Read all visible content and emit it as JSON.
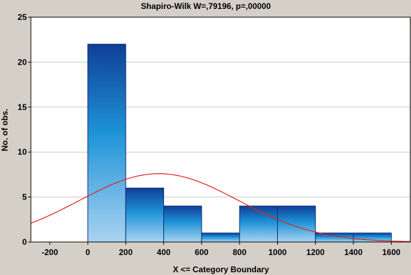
{
  "chart_data": {
    "type": "bar",
    "title": "Shapiro-Wilk W=,79196, p=,00000",
    "xlabel": "X <= Category Boundary",
    "ylabel": "No. of obs.",
    "xlim": [
      -300,
      1700
    ],
    "ylim": [
      0,
      25
    ],
    "x_ticks": [
      -200,
      0,
      200,
      400,
      600,
      800,
      1000,
      1200,
      1400,
      1600
    ],
    "y_ticks": [
      0,
      5,
      10,
      15,
      20,
      25
    ],
    "grid": true,
    "series": [
      {
        "bins": [
          {
            "start": 0,
            "end": 200,
            "value": 22
          },
          {
            "start": 200,
            "end": 400,
            "value": 6
          },
          {
            "start": 400,
            "end": 600,
            "value": 4
          },
          {
            "start": 600,
            "end": 800,
            "value": 1
          },
          {
            "start": 800,
            "end": 1000,
            "value": 4
          },
          {
            "start": 1000,
            "end": 1200,
            "value": 4
          },
          {
            "start": 1200,
            "end": 1400,
            "value": 1
          },
          {
            "start": 1400,
            "end": 1600,
            "value": 1
          }
        ]
      }
    ],
    "fit_curve": {
      "type": "normal",
      "mean": 375,
      "sd": 420,
      "peak": 7.6,
      "color": "#e0201b"
    },
    "colors": {
      "bar_top": "#0f3f96",
      "bar_mid": "#1f93d8",
      "bar_bottom": "#a9d3f1",
      "bar_stroke": "#0b2f73",
      "plot_bg": "#ffffff",
      "frame_bg": "#d4d0c8",
      "grid": "#c8c8c8"
    }
  }
}
